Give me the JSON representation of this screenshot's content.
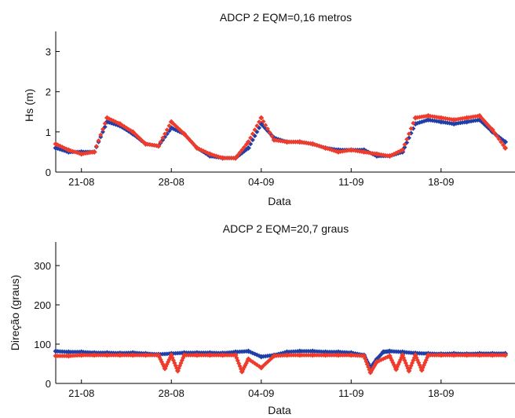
{
  "colors": {
    "blue": "#1f3fa8",
    "red": "#ee3b2b",
    "axis": "#000000"
  },
  "chart_data": [
    {
      "type": "scatter",
      "title": "ADCP 2 EQM=0,16 metros",
      "xlabel": "Data",
      "ylabel": "Hs (m)",
      "ylim": [
        0,
        3.5
      ],
      "y_ticks": [
        "0",
        "1",
        "2",
        "3"
      ],
      "x_ticks": [
        "21-08",
        "28-08",
        "04-09",
        "11-09",
        "18-09"
      ],
      "grid": false,
      "series": [
        {
          "color": "blue",
          "marker": "diamond",
          "x": [
            0,
            1,
            2,
            3,
            4,
            5,
            6,
            7,
            8,
            9,
            10,
            11,
            12,
            13,
            14,
            15,
            16,
            17,
            18,
            19,
            20,
            21,
            22,
            23,
            24,
            25,
            26,
            27,
            28,
            29,
            30,
            31,
            32,
            33,
            34,
            35
          ],
          "y": [
            0.6,
            0.5,
            0.5,
            0.5,
            1.25,
            1.15,
            0.95,
            0.7,
            0.65,
            1.1,
            0.95,
            0.6,
            0.4,
            0.35,
            0.35,
            0.6,
            1.2,
            0.85,
            0.75,
            0.75,
            0.7,
            0.6,
            0.55,
            0.55,
            0.55,
            0.4,
            0.4,
            0.5,
            1.2,
            1.3,
            1.25,
            1.2,
            1.25,
            1.3,
            1.0,
            0.75
          ]
        },
        {
          "color": "red",
          "marker": "diamond",
          "x": [
            0,
            1,
            2,
            3,
            4,
            5,
            6,
            7,
            8,
            9,
            10,
            11,
            12,
            13,
            14,
            15,
            16,
            17,
            18,
            19,
            20,
            21,
            22,
            23,
            24,
            25,
            26,
            27,
            28,
            29,
            30,
            31,
            32,
            33,
            34,
            35
          ],
          "y": [
            0.7,
            0.55,
            0.45,
            0.5,
            1.35,
            1.2,
            1.0,
            0.7,
            0.65,
            1.25,
            0.95,
            0.6,
            0.45,
            0.35,
            0.35,
            0.75,
            1.35,
            0.8,
            0.75,
            0.75,
            0.7,
            0.6,
            0.5,
            0.55,
            0.5,
            0.45,
            0.4,
            0.55,
            1.35,
            1.4,
            1.35,
            1.3,
            1.35,
            1.4,
            1.05,
            0.6
          ]
        }
      ]
    },
    {
      "type": "scatter",
      "title": "ADCP 2 EQM=20,7 graus",
      "xlabel": "Data",
      "ylabel": "Direção (graus)",
      "ylim": [
        0,
        360
      ],
      "y_ticks": [
        "0",
        "100",
        "200",
        "300"
      ],
      "x_ticks": [
        "21-08",
        "28-08",
        "04-09",
        "11-09",
        "18-09"
      ],
      "grid": false,
      "series": [
        {
          "color": "blue",
          "marker": "diamond",
          "x": [
            0,
            1,
            2,
            3,
            4,
            5,
            6,
            7,
            8,
            9,
            10,
            11,
            12,
            13,
            14,
            15,
            16,
            17,
            18,
            19,
            20,
            21,
            22,
            23,
            24,
            24.5,
            25,
            25.5,
            26,
            27,
            28,
            29,
            30,
            31,
            32,
            33,
            34,
            35
          ],
          "y": [
            82,
            80,
            80,
            78,
            78,
            77,
            78,
            76,
            74,
            76,
            78,
            78,
            78,
            77,
            80,
            82,
            68,
            72,
            80,
            82,
            82,
            80,
            80,
            78,
            72,
            40,
            62,
            80,
            82,
            80,
            77,
            76,
            75,
            76,
            75,
            76,
            76,
            76
          ]
        },
        {
          "color": "red",
          "marker": "diamond",
          "x": [
            0,
            1,
            2,
            3,
            4,
            5,
            6,
            7,
            8,
            8.5,
            9,
            9.5,
            10,
            11,
            12,
            13,
            14,
            14.5,
            15,
            16,
            17,
            18,
            19,
            20,
            21,
            22,
            23,
            24,
            24.5,
            25,
            26,
            26.5,
            27,
            27.5,
            28,
            28.5,
            29,
            30,
            31,
            32,
            33,
            34,
            35
          ],
          "y": [
            70,
            70,
            72,
            72,
            72,
            72,
            72,
            72,
            72,
            38,
            72,
            32,
            72,
            72,
            72,
            72,
            72,
            30,
            62,
            40,
            70,
            72,
            72,
            72,
            72,
            72,
            72,
            70,
            28,
            55,
            70,
            36,
            72,
            32,
            72,
            34,
            72,
            72,
            72,
            72,
            72,
            72,
            72
          ]
        }
      ]
    }
  ]
}
